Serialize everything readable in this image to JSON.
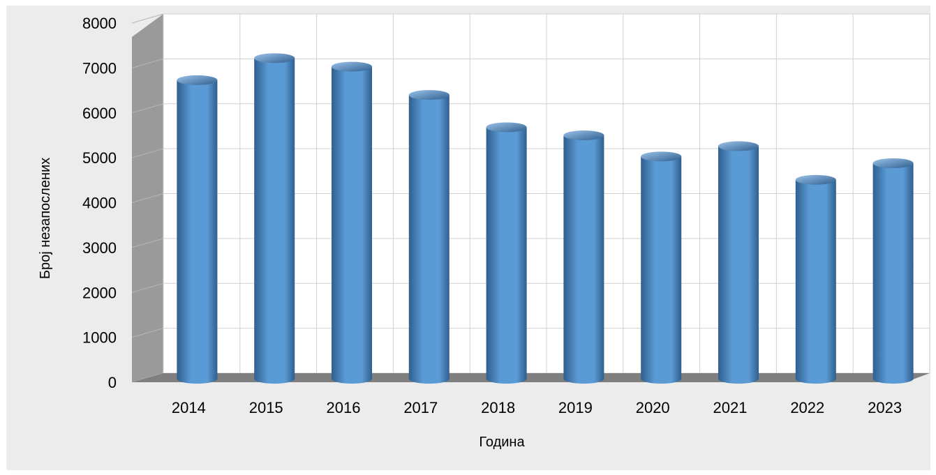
{
  "chart_data": {
    "type": "bar",
    "style": "3d-cylinder",
    "categories": [
      "2014",
      "2015",
      "2016",
      "2017",
      "2018",
      "2019",
      "2020",
      "2021",
      "2022",
      "2023"
    ],
    "values": [
      6650,
      7140,
      6950,
      6320,
      5600,
      5420,
      4950,
      5180,
      4430,
      4800
    ],
    "title": "",
    "xlabel": "Година",
    "ylabel": "Број незапослених",
    "ylim": [
      0,
      8000
    ],
    "yticks": [
      "0",
      "1000",
      "2000",
      "3000",
      "4000",
      "5000",
      "6000",
      "7000",
      "8000"
    ],
    "grid": true,
    "legend": "none",
    "colors": {
      "bar": "#5b9bd5",
      "bar_dark": "#2f5f8f",
      "bar_light": "#9cc3ea",
      "floor": "#7f7f7f",
      "wall": "#ffffff",
      "side_wall": "#9a9a9a",
      "grid": "#d0d0d0",
      "chart_background": "#ececec"
    }
  }
}
